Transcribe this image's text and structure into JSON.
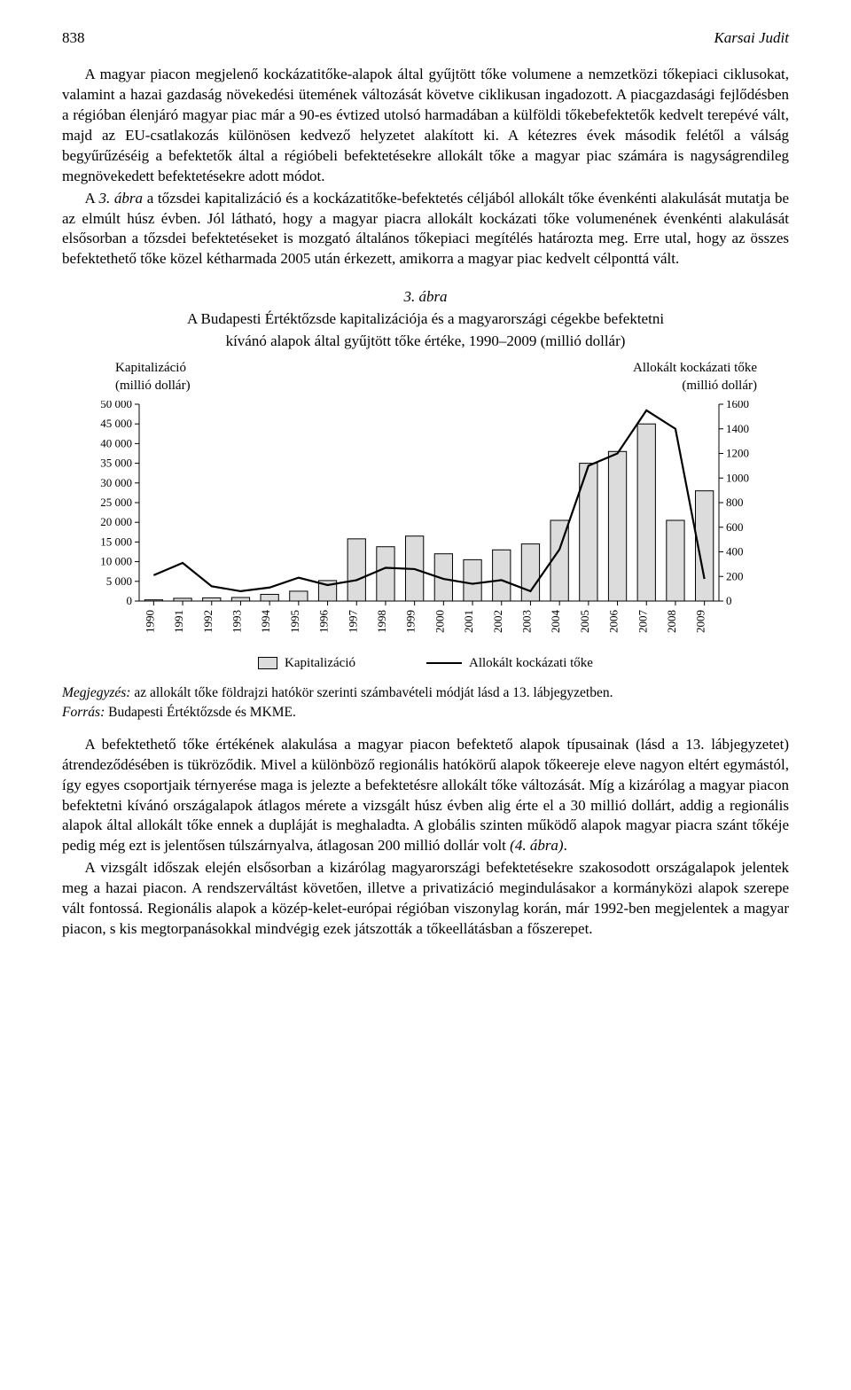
{
  "page_number": "838",
  "author": "Karsai Judit",
  "paragraph1": "A magyar piacon megjelenő kockázatitőke-alapok által gyűjtött tőke volumene a nemzetközi tőkepiaci ciklusokat, valamint a hazai gazdaság növekedési ütemének változását követve ciklikusan ingadozott. A piacgazdasági fejlődésben a régióban élenjáró magyar piac már a 90-es évtized utolsó harmadában a külföldi tőkebefektetők kedvelt terepévé vált, majd az EU-csatlakozás különösen kedvező helyzetet alakított ki. A kétezres évek második felétől a válság begyűrűzéséig a befektetők által a régióbeli befektetésekre allokált tőke a magyar piac számára is nagyságrendileg megnövekedett befektetésekre adott módot.",
  "paragraph2_a": "A ",
  "paragraph2_figref": "3. ábra",
  "paragraph2_b": " a tőzsdei kapitalizáció és a kockázatitőke-befektetés céljából allokált tőke évenkénti alakulását mutatja be az elmúlt húsz évben. Jól látható, hogy a magyar piacra allokált kockázati tőke volumenének évenkénti alakulását elsősorban a tőzsdei befektetéseket is mozgató általános tőkepiaci megítélés határozta meg. Erre utal, hogy az összes befektethető tőke közel kétharmada 2005 után érkezett, amikorra a magyar piac kedvelt célponttá vált.",
  "figure": {
    "label": "3. ábra",
    "title": "A Budapesti Értéktőzsde kapitalizációja és a magyarországi cégekbe befektetni",
    "subtitle": "kívánó alapok által gyűjtött tőke értéke, 1990–2009 (millió dollár)",
    "left_axis_title_1": "Kapitalizáció",
    "left_axis_title_2": "(millió dollár)",
    "right_axis_title_1": "Allokált kockázati tőke",
    "right_axis_title_2": "(millió dollár)",
    "type": "bar+line",
    "years": [
      "1990",
      "1991",
      "1992",
      "1993",
      "1994",
      "1995",
      "1996",
      "1997",
      "1998",
      "1999",
      "2000",
      "2001",
      "2002",
      "2003",
      "2004",
      "2005",
      "2006",
      "2007",
      "2008",
      "2009"
    ],
    "bars_kapitalizacio": [
      300,
      700,
      800,
      900,
      1700,
      2500,
      5200,
      15800,
      13800,
      16500,
      12000,
      10500,
      13000,
      14500,
      20500,
      35000,
      38000,
      45000,
      20500,
      28000
    ],
    "line_allokalt": [
      210,
      310,
      120,
      80,
      110,
      190,
      130,
      170,
      270,
      260,
      180,
      140,
      170,
      80,
      420,
      1100,
      1200,
      1550,
      1400,
      180
    ],
    "left_ylim": [
      0,
      50000
    ],
    "left_ticks": [
      0,
      5000,
      10000,
      15000,
      20000,
      25000,
      30000,
      35000,
      40000,
      45000,
      50000
    ],
    "left_tick_labels": [
      "0",
      "5 000",
      "10 000",
      "15 000",
      "20 000",
      "25 000",
      "30 000",
      "35 000",
      "40 000",
      "45 000",
      "50 000"
    ],
    "right_ylim": [
      0,
      1600
    ],
    "right_ticks": [
      0,
      200,
      400,
      600,
      800,
      1000,
      1200,
      1400,
      1600
    ],
    "right_tick_labels": [
      "0",
      "200",
      "400",
      "600",
      "800",
      "1000",
      "1200",
      "1400",
      "1600"
    ],
    "bar_fill": "#dcdcdc",
    "bar_stroke": "#000000",
    "line_color": "#000000",
    "line_width": 2.2,
    "background": "#ffffff",
    "axis_color": "#000000",
    "tick_font_size": 13,
    "year_font_size": 13,
    "legend_bar": "Kapitalizáció",
    "legend_line": "Allokált kockázati tőke"
  },
  "note_label": "Megjegyzés:",
  "note_text": " az allokált tőke földrajzi hatókör szerinti számbavételi módját lásd a 13. lábjegyzetben.",
  "source_label": "Forrás:",
  "source_text": " Budapesti Értéktőzsde és MKME.",
  "paragraph3_a": "A befektethető tőke értékének alakulása a magyar piacon befektető alapok típusainak (lásd a 13. lábjegyzetet) átrendeződésében is tükröződik. Mivel a különböző regionális hatókörű alapok tőkeereje eleve nagyon eltért egymástól, így egyes csoportjaik térnyerése maga is jelezte a befektetésre allokált tőke változását. Míg a kizárólag a magyar piacon befektetni kívánó országalapok átlagos mérete a vizsgált húsz évben alig érte el a 30 millió dollárt, addig a regionális alapok által allokált tőke ennek a dupláját is meghaladta. A globális szinten működő alapok magyar piacra szánt tőkéje pedig még ezt is jelentősen túlszárnyalva, átlagosan 200 millió dollár volt ",
  "paragraph3_figref": "(4. ábra)",
  "paragraph3_b": ".",
  "paragraph4": "A vizsgált időszak elején elsősorban a kizárólag magyarországi befektetésekre szakosodott országalapok jelentek meg a hazai piacon. A rendszerváltást követően, illetve a privatizáció megindulásakor a kormányközi alapok szerepe vált fontossá. Regionális alapok a közép-kelet-európai régióban viszonylag korán, már 1992-ben megjelentek a magyar piacon, s kis megtorpanásokkal mindvégig ezek játszották a tőkeellátásban a főszerepet."
}
